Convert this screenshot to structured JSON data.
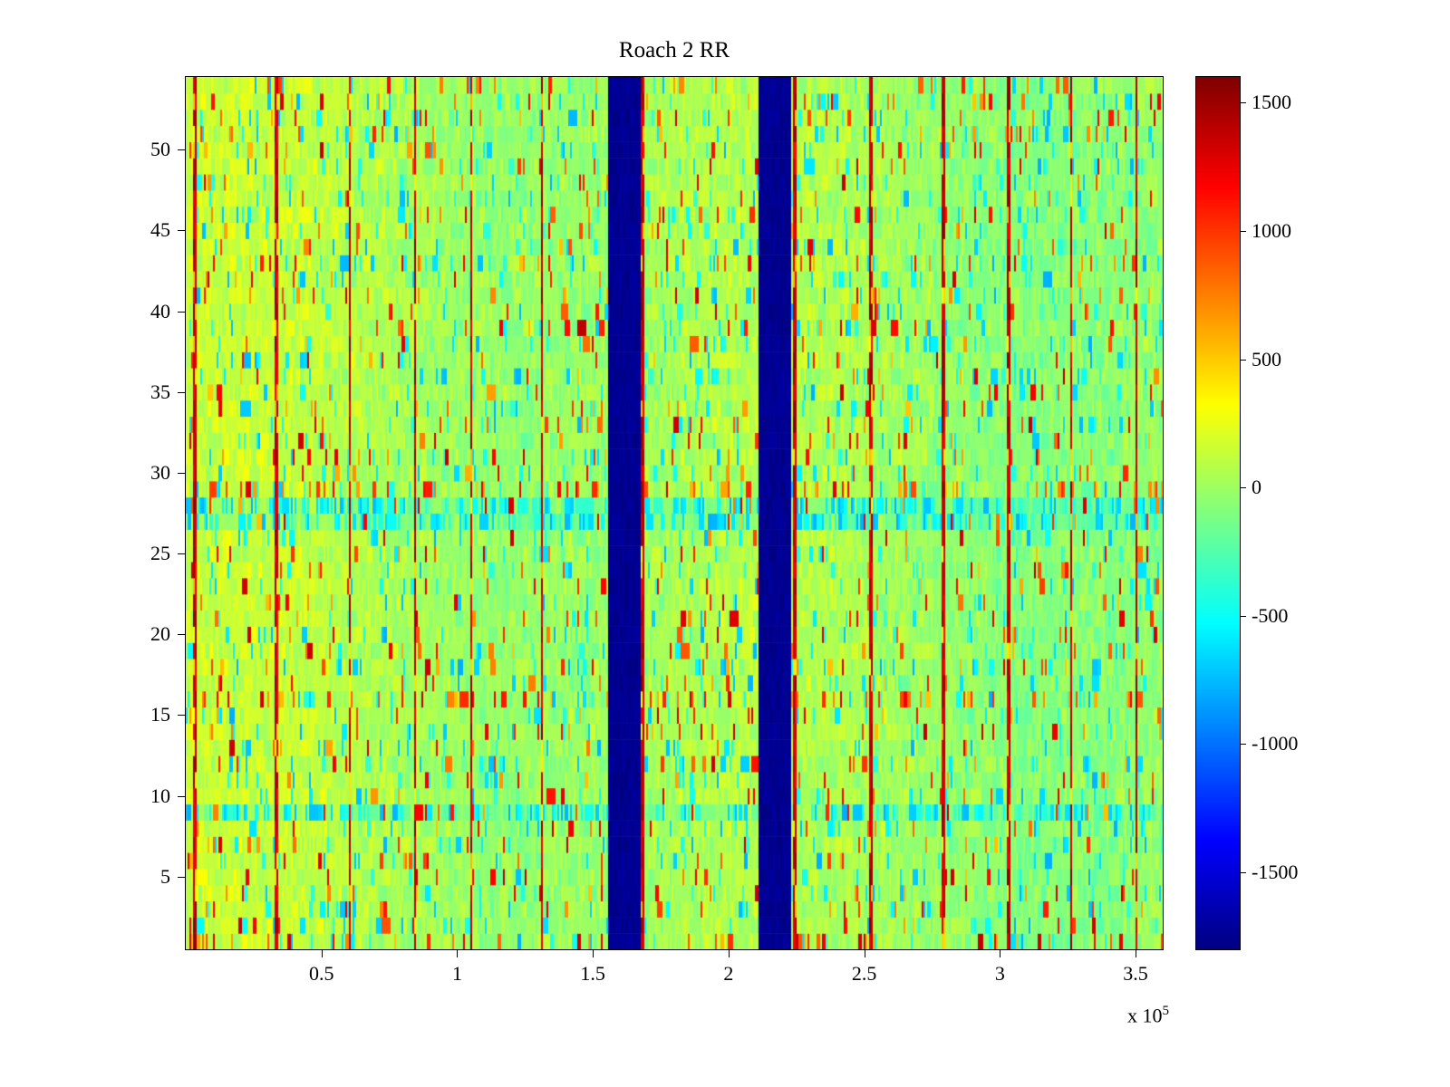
{
  "chart_data": {
    "type": "heatmap",
    "title": "Roach 2 RR",
    "x_axis": {
      "range_1e5": [
        0,
        3.6
      ],
      "ticks": [
        0.5,
        1,
        1.5,
        2,
        2.5,
        3,
        3.5
      ],
      "scale_label": "x 10",
      "scale_exp": "5"
    },
    "y_axis": {
      "range": [
        0.5,
        54.5
      ],
      "ticks": [
        5,
        10,
        15,
        20,
        25,
        30,
        35,
        40,
        45,
        50
      ]
    },
    "rows": 54,
    "colorbar": {
      "colormap": "jet",
      "min": -1800,
      "max": 1600,
      "ticks": [
        1500,
        1000,
        500,
        0,
        -500,
        -1000,
        -1500
      ]
    },
    "features": {
      "blue_bands_1e5": [
        [
          1.55,
          1.67
        ],
        [
          2.11,
          2.23
        ]
      ],
      "red_line_x_1e5": [
        0.03,
        0.33,
        0.6,
        0.84,
        1.05,
        1.31,
        1.68,
        2.24,
        2.52,
        2.79,
        3.03,
        3.26,
        3.5
      ],
      "cyan_rows": [
        9,
        27,
        28
      ],
      "hot_rows": [
        1,
        16,
        29
      ],
      "noise": {
        "base_mean": 40,
        "base_spread": 200,
        "red_speckle_prob": 0.05,
        "cyan_speckle_prob": 0.07,
        "red_speckle_range": [
          500,
          1400
        ],
        "cyan_speckle_range": [
          -800,
          -350
        ]
      }
    },
    "colors": {
      "background": "#ffffff",
      "frame": "#000000"
    }
  }
}
